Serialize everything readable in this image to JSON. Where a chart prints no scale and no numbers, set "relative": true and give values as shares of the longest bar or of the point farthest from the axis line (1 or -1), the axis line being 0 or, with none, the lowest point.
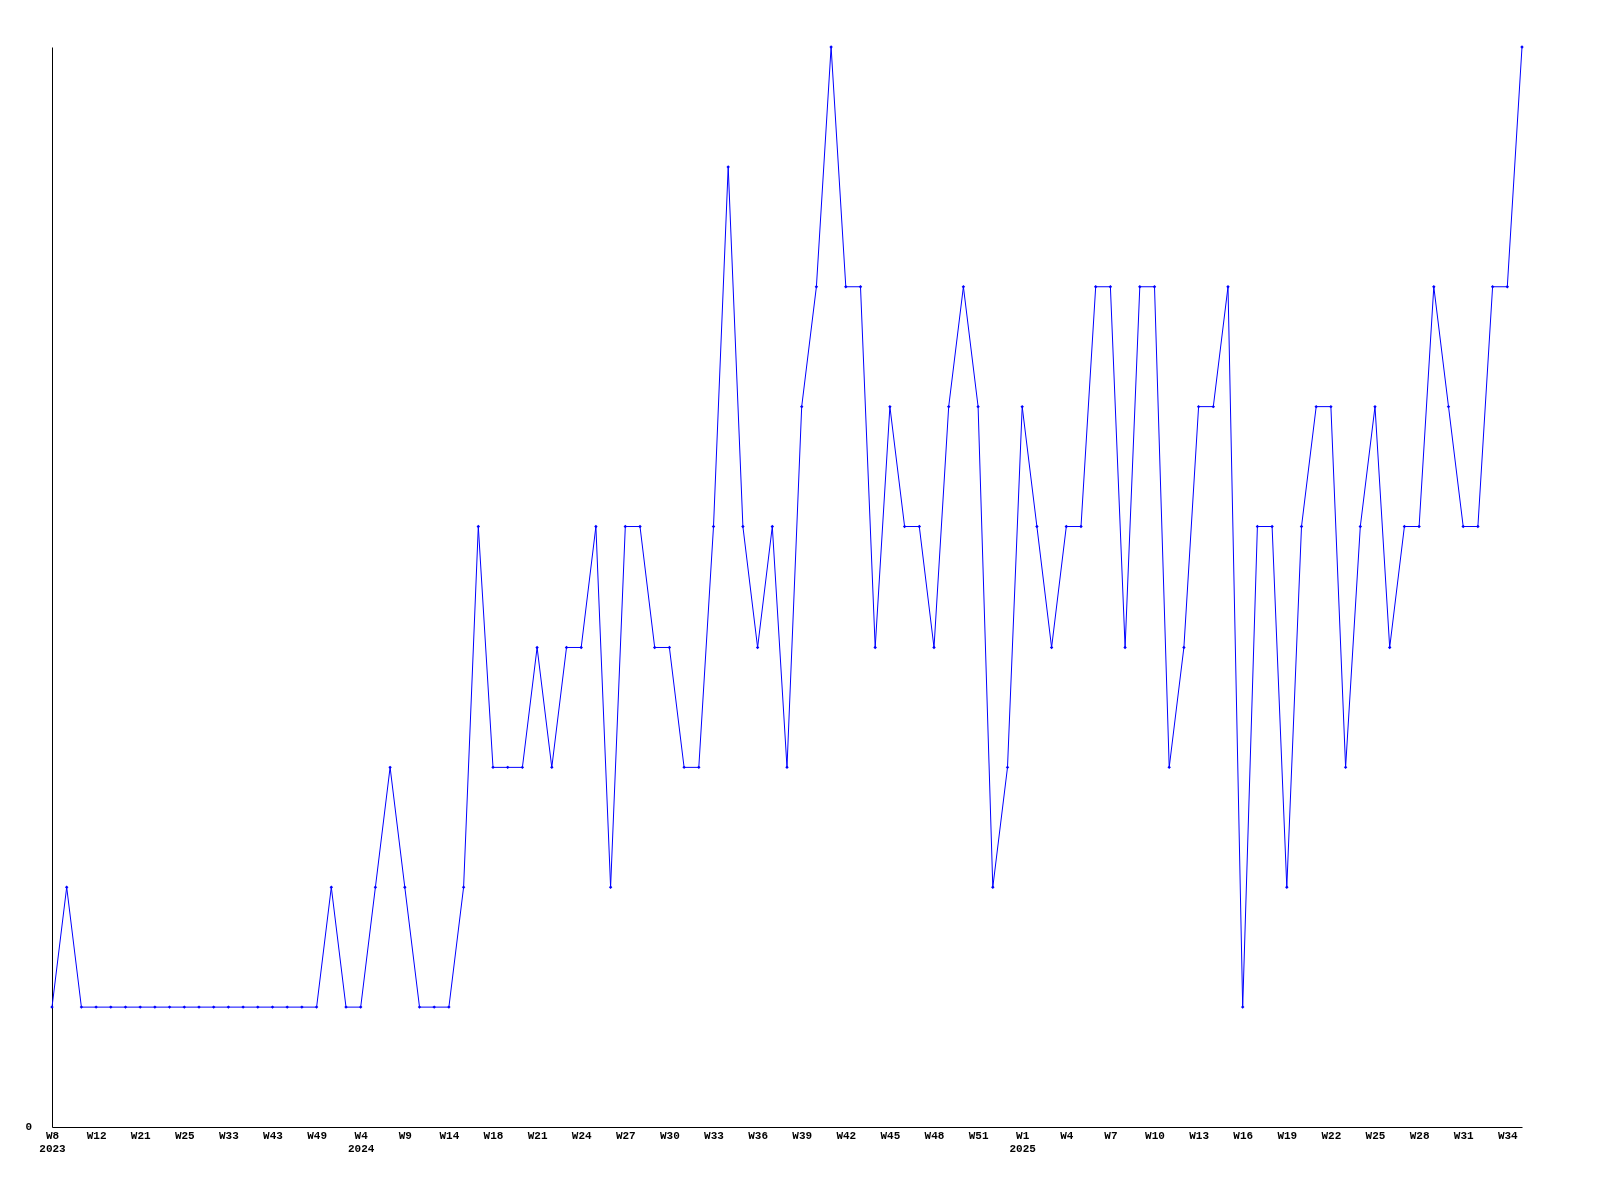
{
  "chart_data": {
    "type": "line",
    "relative": true,
    "marker": "diamond",
    "line_style": "solid",
    "grid": false,
    "legend": false,
    "categories": [
      "W8\n2023",
      null,
      null,
      "W12",
      null,
      null,
      "W21",
      null,
      null,
      "W25",
      null,
      null,
      "W33",
      null,
      null,
      "W43",
      null,
      null,
      "W49",
      null,
      null,
      "W4\n2024",
      null,
      null,
      "W9",
      null,
      null,
      "W14",
      null,
      null,
      "W18",
      null,
      null,
      "W21",
      null,
      null,
      "W24",
      null,
      null,
      "W27",
      null,
      null,
      "W30",
      null,
      null,
      "W33",
      null,
      null,
      "W36",
      null,
      null,
      "W39",
      null,
      null,
      "W42",
      null,
      null,
      "W45",
      null,
      null,
      "W48",
      null,
      null,
      "W51",
      null,
      null,
      "W1\n2025",
      null,
      null,
      "W4",
      null,
      null,
      "W7",
      null,
      null,
      "W10",
      null,
      null,
      "W13",
      null,
      null,
      "W16",
      null,
      null,
      "W19",
      null,
      null,
      "W22",
      null,
      null,
      "W25",
      null,
      null,
      "W28",
      null,
      null,
      "W31",
      null,
      null,
      "W34",
      null
    ],
    "series": [
      {
        "color": "#0000ff",
        "values": [
          0.111,
          0.222,
          0.111,
          0.111,
          0.111,
          0.111,
          0.111,
          0.111,
          0.111,
          0.111,
          0.111,
          0.111,
          0.111,
          0.111,
          0.111,
          0.111,
          0.111,
          0.111,
          0.111,
          0.222,
          0.111,
          0.111,
          0.222,
          0.333,
          0.222,
          0.111,
          0.111,
          0.111,
          0.222,
          0.556,
          0.333,
          0.333,
          0.333,
          0.444,
          0.333,
          0.444,
          0.444,
          0.556,
          0.222,
          0.556,
          0.556,
          0.444,
          0.444,
          0.333,
          0.333,
          0.556,
          0.889,
          0.556,
          0.444,
          0.556,
          0.333,
          0.667,
          0.778,
          1,
          0.778,
          0.778,
          0.444,
          0.667,
          0.556,
          0.556,
          0.444,
          0.667,
          0.778,
          0.667,
          0.222,
          0.333,
          0.667,
          0.556,
          0.444,
          0.556,
          0.556,
          0.778,
          0.778,
          0.444,
          0.778,
          0.778,
          0.333,
          0.444,
          0.667,
          0.667,
          0.778,
          0.111,
          0.556,
          0.556,
          0.222,
          0.556,
          0.667,
          0.667,
          0.333,
          0.556,
          0.667,
          0.444,
          0.556,
          0.556,
          0.778,
          0.667,
          0.556,
          0.556,
          0.778,
          0.778,
          1
        ]
      }
    ],
    "annotations": [
      "0"
    ]
  }
}
